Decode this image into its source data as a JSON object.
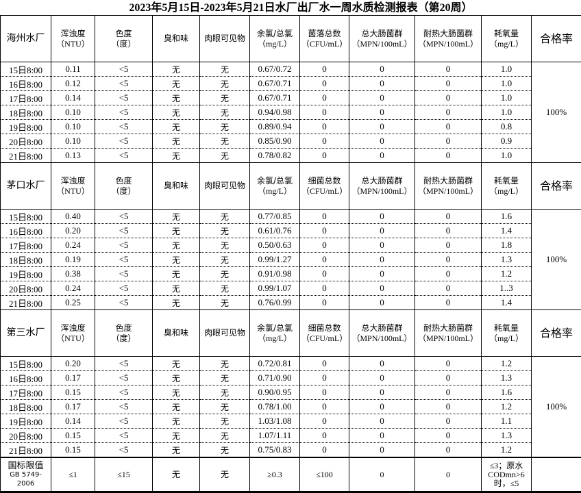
{
  "title": "2023年5月15日-2023年5月21日水厂出厂水一周水质检测报表（第20周）",
  "sections": [
    {
      "plant": "海州水厂",
      "headers": [
        [
          "浑浊度",
          "（NTU）"
        ],
        [
          "色度",
          "（度）"
        ],
        [
          "臭和味",
          ""
        ],
        [
          "肉眼可见物",
          ""
        ],
        [
          "余氯/总氯",
          "（mg/L）"
        ],
        [
          "菌落总数",
          "（CFU/mL）"
        ],
        [
          "总大肠菌群",
          "（MPN/100mL）"
        ],
        [
          "耐热大肠菌群",
          "（MPN/100mL）"
        ],
        [
          "耗氧量",
          "（mg/L）"
        ]
      ],
      "pass_label": "合格率",
      "pass_rate": "100%",
      "rows": [
        [
          "15日8:00",
          "0.11",
          "<5",
          "无",
          "无",
          "0.67/0.72",
          "0",
          "0",
          "0",
          "1.0"
        ],
        [
          "16日8:00",
          "0.12",
          "<5",
          "无",
          "无",
          "0.67/0.71",
          "0",
          "0",
          "0",
          "1.0"
        ],
        [
          "17日8:00",
          "0.14",
          "<5",
          "无",
          "无",
          "0.67/0.71",
          "0",
          "0",
          "0",
          "1.0"
        ],
        [
          "18日8:00",
          "0.10",
          "<5",
          "无",
          "无",
          "0.94/0.98",
          "0",
          "0",
          "0",
          "1.0"
        ],
        [
          "19日8:00",
          "0.10",
          "<5",
          "无",
          "无",
          "0.89/0.94",
          "0",
          "0",
          "0",
          "0.8"
        ],
        [
          "20日8:00",
          "0.10",
          "<5",
          "无",
          "无",
          "0.85/0.90",
          "0",
          "0",
          "0",
          "0.9"
        ],
        [
          "21日8:00",
          "0.13",
          "<5",
          "无",
          "无",
          "0.78/0.82",
          "0",
          "0",
          "0",
          "1.0"
        ]
      ]
    },
    {
      "plant": "茅口水厂",
      "headers": [
        [
          "浑浊度",
          "（NTU）"
        ],
        [
          "色度",
          "（度）"
        ],
        [
          "臭和味",
          ""
        ],
        [
          "肉眼可见物",
          ""
        ],
        [
          "余氯/总氯",
          "（mg/L）"
        ],
        [
          "细菌总数",
          "（CFU/mL）"
        ],
        [
          "总大肠菌群",
          "（MPN/100mL）"
        ],
        [
          "耐热大肠菌群",
          "（MPN/100mL）"
        ],
        [
          "耗氧量",
          "（mg/L）"
        ]
      ],
      "pass_label": "合格率",
      "pass_rate": "100%",
      "rows": [
        [
          "15日8:00",
          "0.40",
          "<5",
          "无",
          "无",
          "0.77/0.85",
          "0",
          "0",
          "0",
          "1.6"
        ],
        [
          "16日8:00",
          "0.20",
          "<5",
          "无",
          "无",
          "0.61/0.76",
          "0",
          "0",
          "0",
          "1.4"
        ],
        [
          "17日8:00",
          "0.24",
          "<5",
          "无",
          "无",
          "0.50/0.63",
          "0",
          "0",
          "0",
          "1.8"
        ],
        [
          "18日8:00",
          "0.19",
          "<5",
          "无",
          "无",
          "0.99/1.27",
          "0",
          "0",
          "0",
          "1.3"
        ],
        [
          "19日8:00",
          "0.38",
          "<5",
          "无",
          "无",
          "0.91/0.98",
          "0",
          "0",
          "0",
          "1.2"
        ],
        [
          "20日8:00",
          "0.24",
          "<5",
          "无",
          "无",
          "0.99/1.07",
          "0",
          "0",
          "0",
          "1..3"
        ],
        [
          "21日8:00",
          "0.25",
          "<5",
          "无",
          "无",
          "0.76/0.99",
          "0",
          "0",
          "0",
          "1.4"
        ]
      ]
    },
    {
      "plant": "第三水厂",
      "headers": [
        [
          "浑浊度",
          "（NTU）"
        ],
        [
          "色度",
          "（度）"
        ],
        [
          "臭和味",
          ""
        ],
        [
          "肉眼可见物",
          ""
        ],
        [
          "余氯/总氯",
          "（mg/L）"
        ],
        [
          "细菌总数",
          "（CFU/mL）"
        ],
        [
          "总大肠菌群",
          "（MPN/100mL）"
        ],
        [
          "耐热大肠菌群",
          "（MPN/100mL）"
        ],
        [
          "耗氧量",
          "（mg/L）"
        ]
      ],
      "pass_label": "合格率",
      "pass_rate": "100%",
      "rows": [
        [
          "15日8:00",
          "0.20",
          "<5",
          "无",
          "无",
          "0.72/0.81",
          "0",
          "0",
          "0",
          "1.2"
        ],
        [
          "16日8:00",
          "0.17",
          "<5",
          "无",
          "无",
          "0.71/0.90",
          "0",
          "0",
          "0",
          "1.3"
        ],
        [
          "17日8:00",
          "0.15",
          "<5",
          "无",
          "无",
          "0.90/0.95",
          "0",
          "0",
          "0",
          "1.6"
        ],
        [
          "18日8:00",
          "0.17",
          "<5",
          "无",
          "无",
          "0.78/1.00",
          "0",
          "0",
          "0",
          "1.2"
        ],
        [
          "19日8:00",
          "0.14",
          "<5",
          "无",
          "无",
          "1.03/1.08",
          "0",
          "0",
          "0",
          "1.1"
        ],
        [
          "20日8:00",
          "0.15",
          "<5",
          "无",
          "无",
          "1.07/1.11",
          "0",
          "0",
          "0",
          "1.3"
        ],
        [
          "21日8:00",
          "0.15",
          "<5",
          "无",
          "无",
          "0.75/0.83",
          "0",
          "0",
          "0",
          "1.2"
        ]
      ]
    }
  ],
  "limits": {
    "label": [
      "国标限值",
      "GB 5749-",
      "2006"
    ],
    "values": [
      "≤1",
      "≤15",
      "无",
      "无",
      "≥0.3",
      "≤100",
      "0",
      "0",
      "≤3；原水CODmn>6时，≤5"
    ]
  }
}
